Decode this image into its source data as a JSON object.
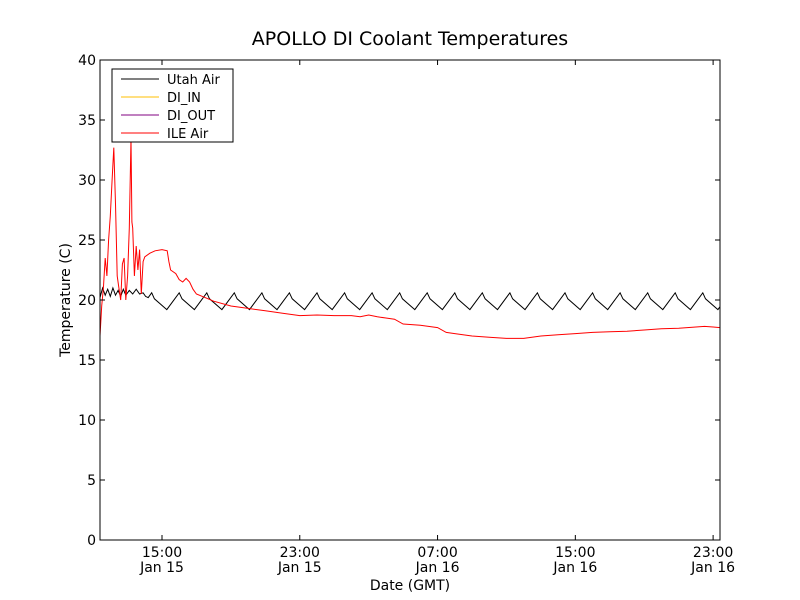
{
  "chart_data": {
    "type": "line",
    "title": "APOLLO DI Coolant Temperatures",
    "xlabel": "Date (GMT)",
    "ylabel": "Temperature (C)",
    "ylim": [
      0,
      40
    ],
    "xlim_hours": [
      11.4,
      47.4
    ],
    "y_ticks": [
      0,
      5,
      10,
      15,
      20,
      25,
      30,
      35,
      40
    ],
    "x_ticks": [
      {
        "hours": 15,
        "time": "15:00",
        "date": "Jan 15"
      },
      {
        "hours": 23,
        "time": "23:00",
        "date": "Jan 15"
      },
      {
        "hours": 31,
        "time": "07:00",
        "date": "Jan 16"
      },
      {
        "hours": 39,
        "time": "15:00",
        "date": "Jan 16"
      },
      {
        "hours": 47,
        "time": "23:00",
        "date": "Jan 16"
      }
    ],
    "grid": false,
    "legend": {
      "placement": "top-left",
      "entries": [
        {
          "name": "Utah Air",
          "color": "#000000"
        },
        {
          "name": "DI_IN",
          "color": "#ffbf00"
        },
        {
          "name": "DI_OUT",
          "color": "#800080"
        },
        {
          "name": "ILE Air",
          "color": "#ff0000"
        }
      ]
    },
    "series": [
      {
        "name": "Utah Air",
        "color": "#000000",
        "sawtooth": {
          "start_hours": 11.4,
          "end_hours": 47.4,
          "initial": [
            [
              11.4,
              20.2
            ],
            [
              11.55,
              21.0
            ],
            [
              11.7,
              20.4
            ],
            [
              11.85,
              20.9
            ],
            [
              12.0,
              20.3
            ],
            [
              12.15,
              21.0
            ],
            [
              12.3,
              20.4
            ],
            [
              12.45,
              20.8
            ],
            [
              12.6,
              20.3
            ],
            [
              12.75,
              20.9
            ],
            [
              12.9,
              20.4
            ],
            [
              13.1,
              20.8
            ],
            [
              13.3,
              20.5
            ],
            [
              13.5,
              20.9
            ],
            [
              13.7,
              20.5
            ],
            [
              13.9,
              20.6
            ],
            [
              14.05,
              20.3
            ],
            [
              14.2,
              20.2
            ],
            [
              14.4,
              20.6
            ]
          ],
          "first_peak_hours": 14.4,
          "period_hours": 1.6,
          "trough": 19.2,
          "peak": 20.6
        }
      },
      {
        "name": "ILE Air",
        "color": "#ff0000",
        "points": [
          [
            11.4,
            17.0
          ],
          [
            11.5,
            19.5
          ],
          [
            11.6,
            21.0
          ],
          [
            11.7,
            23.5
          ],
          [
            11.8,
            22.0
          ],
          [
            11.9,
            25.0
          ],
          [
            12.0,
            27.0
          ],
          [
            12.1,
            30.0
          ],
          [
            12.2,
            32.7
          ],
          [
            12.3,
            28.0
          ],
          [
            12.4,
            22.0
          ],
          [
            12.5,
            21.0
          ],
          [
            12.6,
            20.0
          ],
          [
            12.7,
            23.0
          ],
          [
            12.8,
            23.5
          ],
          [
            12.9,
            20.0
          ],
          [
            13.0,
            22.0
          ],
          [
            13.1,
            26.0
          ],
          [
            13.2,
            33.5
          ],
          [
            13.25,
            26.5
          ],
          [
            13.3,
            26.0
          ],
          [
            13.4,
            22.0
          ],
          [
            13.5,
            24.5
          ],
          [
            13.6,
            22.5
          ],
          [
            13.7,
            24.2
          ],
          [
            13.8,
            20.5
          ],
          [
            13.9,
            23.2
          ],
          [
            14.0,
            23.6
          ],
          [
            14.3,
            23.9
          ],
          [
            14.6,
            24.1
          ],
          [
            15.0,
            24.2
          ],
          [
            15.3,
            24.1
          ],
          [
            15.4,
            23.2
          ],
          [
            15.5,
            22.5
          ],
          [
            15.8,
            22.2
          ],
          [
            16.0,
            21.7
          ],
          [
            16.2,
            21.5
          ],
          [
            16.4,
            21.8
          ],
          [
            16.6,
            21.5
          ],
          [
            16.8,
            20.9
          ],
          [
            17.0,
            20.5
          ],
          [
            17.5,
            20.2
          ],
          [
            18.0,
            19.9
          ],
          [
            19.0,
            19.5
          ],
          [
            20.0,
            19.3
          ],
          [
            21.0,
            19.1
          ],
          [
            22.0,
            18.9
          ],
          [
            23.0,
            18.7
          ],
          [
            24.0,
            18.75
          ],
          [
            25.0,
            18.7
          ],
          [
            26.0,
            18.7
          ],
          [
            26.5,
            18.6
          ],
          [
            27.0,
            18.75
          ],
          [
            27.5,
            18.6
          ],
          [
            28.0,
            18.5
          ],
          [
            28.5,
            18.4
          ],
          [
            29.0,
            18.0
          ],
          [
            30.0,
            17.9
          ],
          [
            31.0,
            17.7
          ],
          [
            31.5,
            17.3
          ],
          [
            32.0,
            17.2
          ],
          [
            33.0,
            17.0
          ],
          [
            34.0,
            16.9
          ],
          [
            35.0,
            16.8
          ],
          [
            36.0,
            16.8
          ],
          [
            37.0,
            17.0
          ],
          [
            38.0,
            17.1
          ],
          [
            39.0,
            17.2
          ],
          [
            40.0,
            17.3
          ],
          [
            41.0,
            17.35
          ],
          [
            42.0,
            17.4
          ],
          [
            43.0,
            17.5
          ],
          [
            44.0,
            17.6
          ],
          [
            45.0,
            17.65
          ],
          [
            46.0,
            17.75
          ],
          [
            46.5,
            17.8
          ],
          [
            47.0,
            17.75
          ],
          [
            47.4,
            17.7
          ]
        ]
      }
    ]
  }
}
